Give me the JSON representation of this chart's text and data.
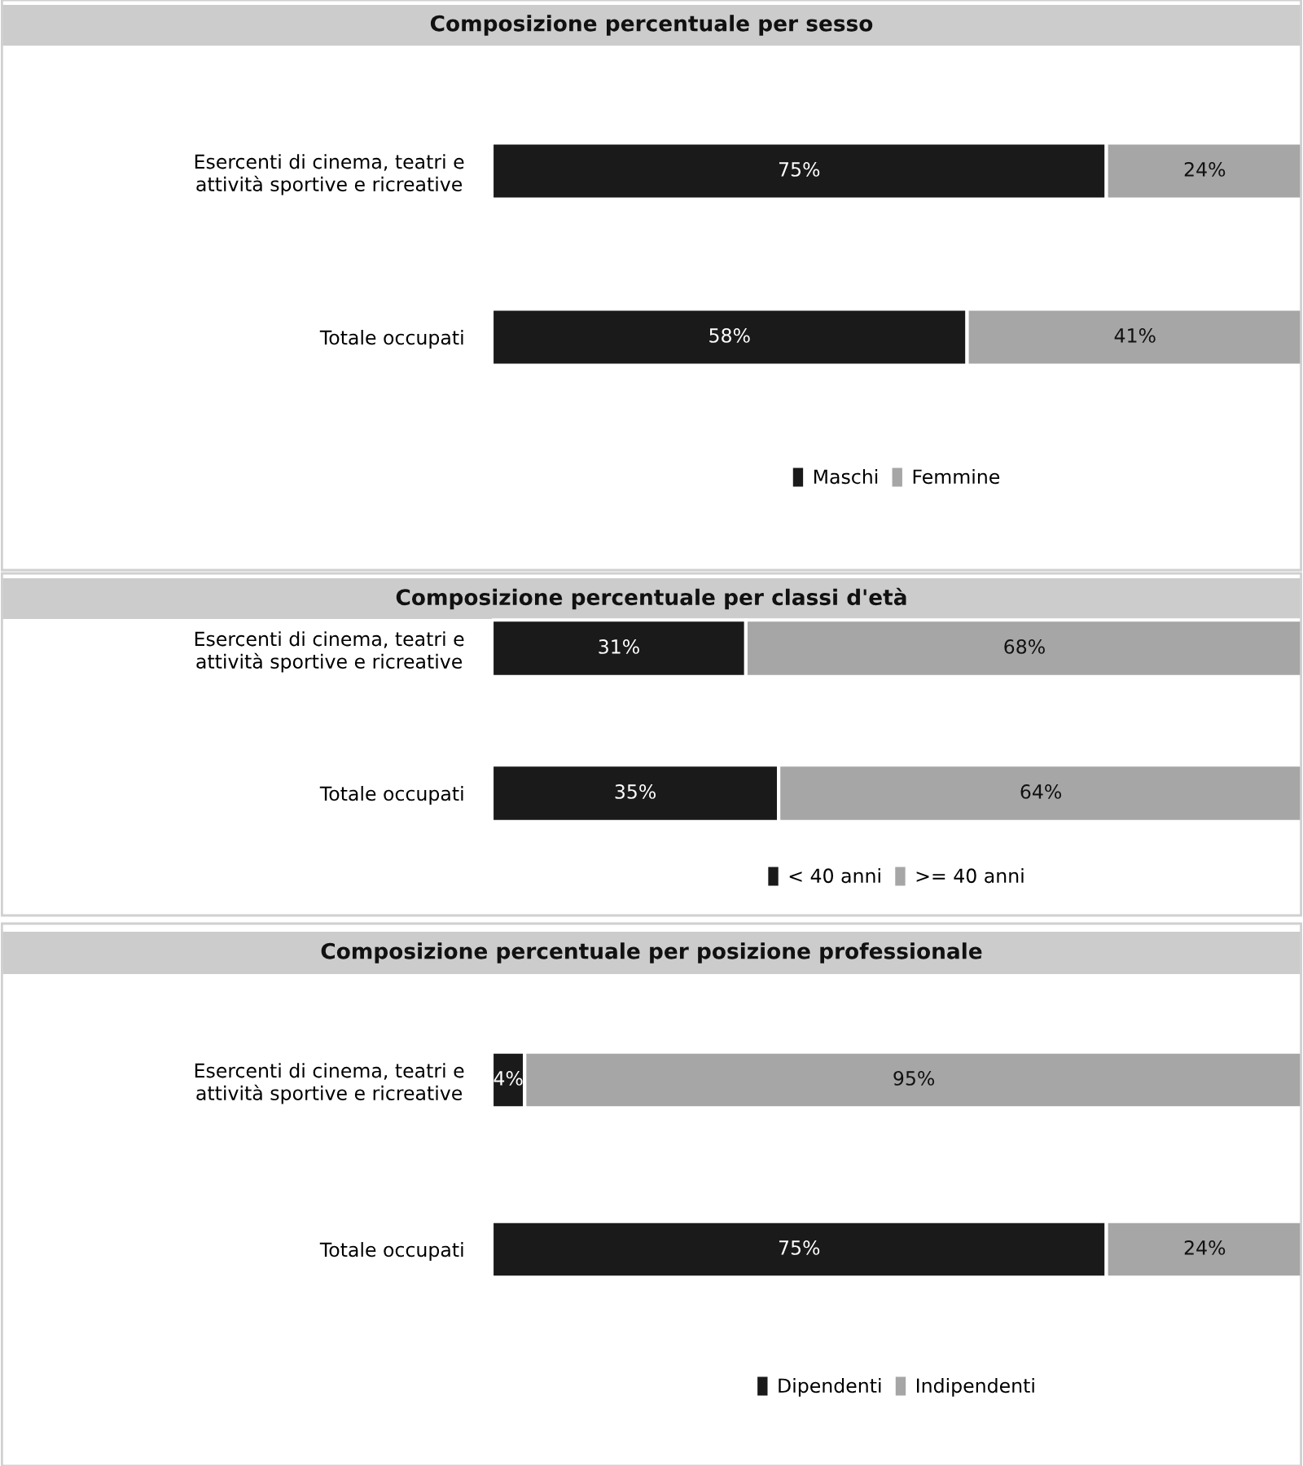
{
  "chart_data": [
    {
      "type": "bar",
      "orientation": "horizontal",
      "stacked": true,
      "title": "Composizione percentuale per sesso",
      "categories": [
        "Esercenti di cinema, teatri e attività sportive e ricreative",
        "Totale occupati"
      ],
      "series": [
        {
          "name": "Maschi",
          "color": "#1a1a1a",
          "values": [
            75,
            58
          ],
          "value_labels": [
            "75%",
            "58%"
          ]
        },
        {
          "name": "Femmine",
          "color": "#a6a6a6",
          "values": [
            24,
            41
          ],
          "value_labels": [
            "24%",
            "41%"
          ]
        }
      ],
      "legend": "bottom",
      "tick_labels": "y",
      "grid": false
    },
    {
      "type": "bar",
      "orientation": "horizontal",
      "stacked": true,
      "title": "Composizione percentuale per classi d'età",
      "categories": [
        "Esercenti di cinema, teatri e attività sportive e ricreative",
        "Totale occupati"
      ],
      "series": [
        {
          "name": "< 40 anni",
          "color": "#1a1a1a",
          "values": [
            31,
            35
          ],
          "value_labels": [
            "31%",
            "35%"
          ]
        },
        {
          "name": ">= 40 anni",
          "color": "#a6a6a6",
          "values": [
            68,
            64
          ],
          "value_labels": [
            "68%",
            "64%"
          ]
        }
      ],
      "legend": "bottom",
      "tick_labels": "y",
      "grid": false
    },
    {
      "type": "bar",
      "orientation": "horizontal",
      "stacked": true,
      "title": "Composizione percentuale per posizione professionale",
      "categories": [
        "Esercenti di cinema, teatri e attività sportive e ricreative",
        "Totale occupati"
      ],
      "series": [
        {
          "name": "Dipendenti",
          "color": "#1a1a1a",
          "values": [
            4,
            75
          ],
          "value_labels": [
            "4%",
            "75%"
          ]
        },
        {
          "name": "Indipendenti",
          "color": "#a6a6a6",
          "values": [
            95,
            24
          ],
          "value_labels": [
            "95%",
            "24%"
          ]
        }
      ],
      "legend": "bottom",
      "tick_labels": "y",
      "grid": false
    }
  ]
}
